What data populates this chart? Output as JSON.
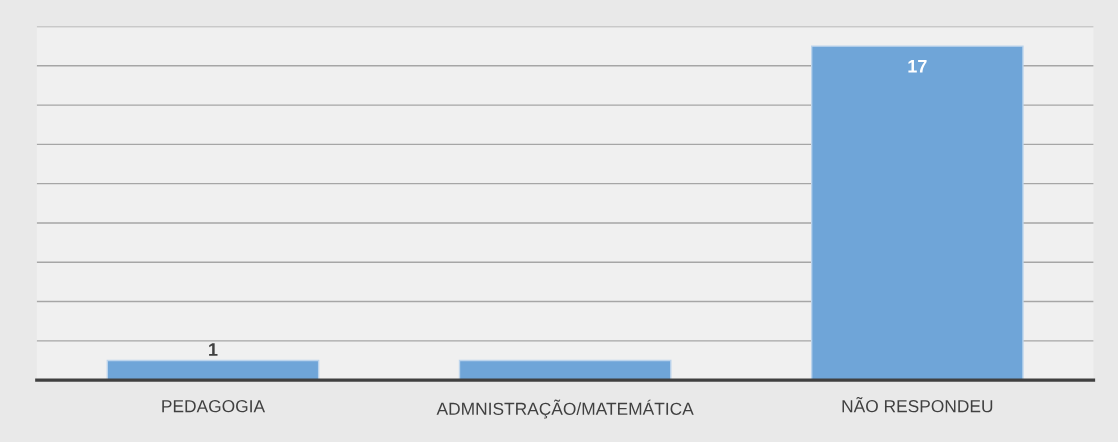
{
  "chart_data": {
    "type": "bar",
    "categories": [
      "PEDAGOGIA",
      "ADMNISTRAÇÃO/MATEMÁTICA",
      "NÃO RESPONDEU"
    ],
    "values": [
      1,
      1,
      17
    ],
    "value_labels": [
      "1",
      null,
      "17"
    ],
    "color": "#6fa5d8",
    "ylim": [
      0,
      18
    ],
    "yticks": [
      {
        "value": 0,
        "label": null
      },
      {
        "value": 2,
        "label": null
      },
      {
        "value": 4,
        "label": null
      },
      {
        "value": 6,
        "label": null
      },
      {
        "value": 8,
        "label": null
      },
      {
        "value": 10,
        "label": null
      },
      {
        "value": 12,
        "label": null
      },
      {
        "value": 14,
        "label": null
      },
      {
        "value": 16,
        "label": null
      },
      {
        "value": 18,
        "label": null
      }
    ],
    "tick_labels": "x",
    "grid": "y"
  }
}
